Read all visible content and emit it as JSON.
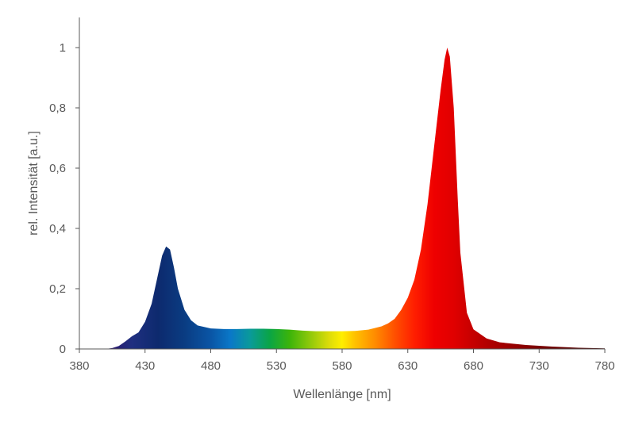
{
  "chart_data": {
    "type": "area",
    "title": "",
    "xlabel": "Wellenlänge [nm]",
    "ylabel": "rel. Intensität [a.u.]",
    "xlim": [
      380,
      780
    ],
    "ylim": [
      0,
      1.1
    ],
    "x_ticks": [
      380,
      430,
      480,
      530,
      580,
      630,
      680,
      730,
      780
    ],
    "x_tick_labels": [
      "380",
      "430",
      "480",
      "530",
      "580",
      "630",
      "680",
      "730",
      "780"
    ],
    "y_ticks": [
      0,
      0.2,
      0.4,
      0.6,
      0.8,
      1
    ],
    "y_tick_labels": [
      "0",
      "0,2",
      "0,4",
      "0,6",
      "0,8",
      "1"
    ],
    "grid": false,
    "fill": "spectral colors by wavelength",
    "series": [
      {
        "x": [
          380,
          400,
          405,
          410,
          415,
          420,
          425,
          430,
          435,
          440,
          443,
          446,
          449,
          452,
          455,
          460,
          465,
          470,
          480,
          490,
          500,
          510,
          520,
          530,
          540,
          550,
          560,
          570,
          580,
          590,
          600,
          610,
          615,
          620,
          625,
          630,
          635,
          640,
          645,
          650,
          655,
          658,
          660,
          662,
          665,
          668,
          670,
          675,
          680,
          690,
          700,
          720,
          740,
          760,
          780
        ],
        "y": [
          0,
          0,
          0.003,
          0.01,
          0.025,
          0.042,
          0.055,
          0.09,
          0.15,
          0.25,
          0.31,
          0.34,
          0.33,
          0.27,
          0.2,
          0.13,
          0.095,
          0.078,
          0.068,
          0.066,
          0.066,
          0.067,
          0.067,
          0.066,
          0.064,
          0.061,
          0.059,
          0.059,
          0.059,
          0.06,
          0.064,
          0.075,
          0.085,
          0.1,
          0.13,
          0.17,
          0.23,
          0.33,
          0.48,
          0.67,
          0.86,
          0.96,
          1.0,
          0.97,
          0.8,
          0.5,
          0.32,
          0.12,
          0.065,
          0.035,
          0.022,
          0.013,
          0.008,
          0.004,
          0.002
        ]
      }
    ]
  }
}
